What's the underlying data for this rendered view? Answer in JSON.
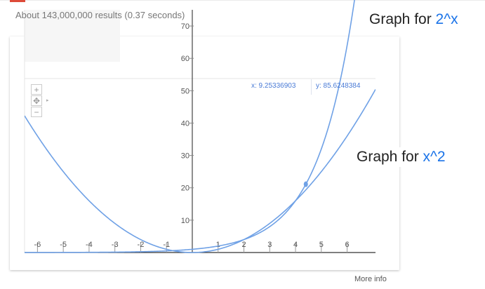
{
  "results_text": "About 143,000,000 results (0.37 seconds)",
  "annotations": {
    "pow_prefix": "Graph for ",
    "pow_fn": "2^x",
    "sq_prefix": "Graph for ",
    "sq_fn": "x^2"
  },
  "readout": {
    "x": "x: 9.25336903",
    "y": "y: 85.6248384"
  },
  "nav": {
    "zoom_in": "+",
    "move": "✥",
    "zoom_out": "−",
    "expand": "▸"
  },
  "more_info": "More info",
  "colors": {
    "curve": "#6fa1e6",
    "accent": "#1a73e8",
    "axis": "#333333"
  },
  "chart_data": {
    "type": "line",
    "x_ticks": [
      "-6",
      "-5",
      "-4",
      "-3",
      "-2",
      "-1",
      "1",
      "2",
      "3",
      "4",
      "5",
      "6"
    ],
    "y_ticks": [
      "10",
      "20",
      "30",
      "40",
      "50",
      "60",
      "70"
    ],
    "series": [
      {
        "name": "2^x",
        "function": "2^x"
      },
      {
        "name": "x^2",
        "function": "x^2"
      }
    ],
    "xlim": [
      -6.5,
      7.1
    ],
    "ylim": [
      0,
      75
    ],
    "marker": {
      "x": 4.4,
      "y": 21.1
    }
  }
}
